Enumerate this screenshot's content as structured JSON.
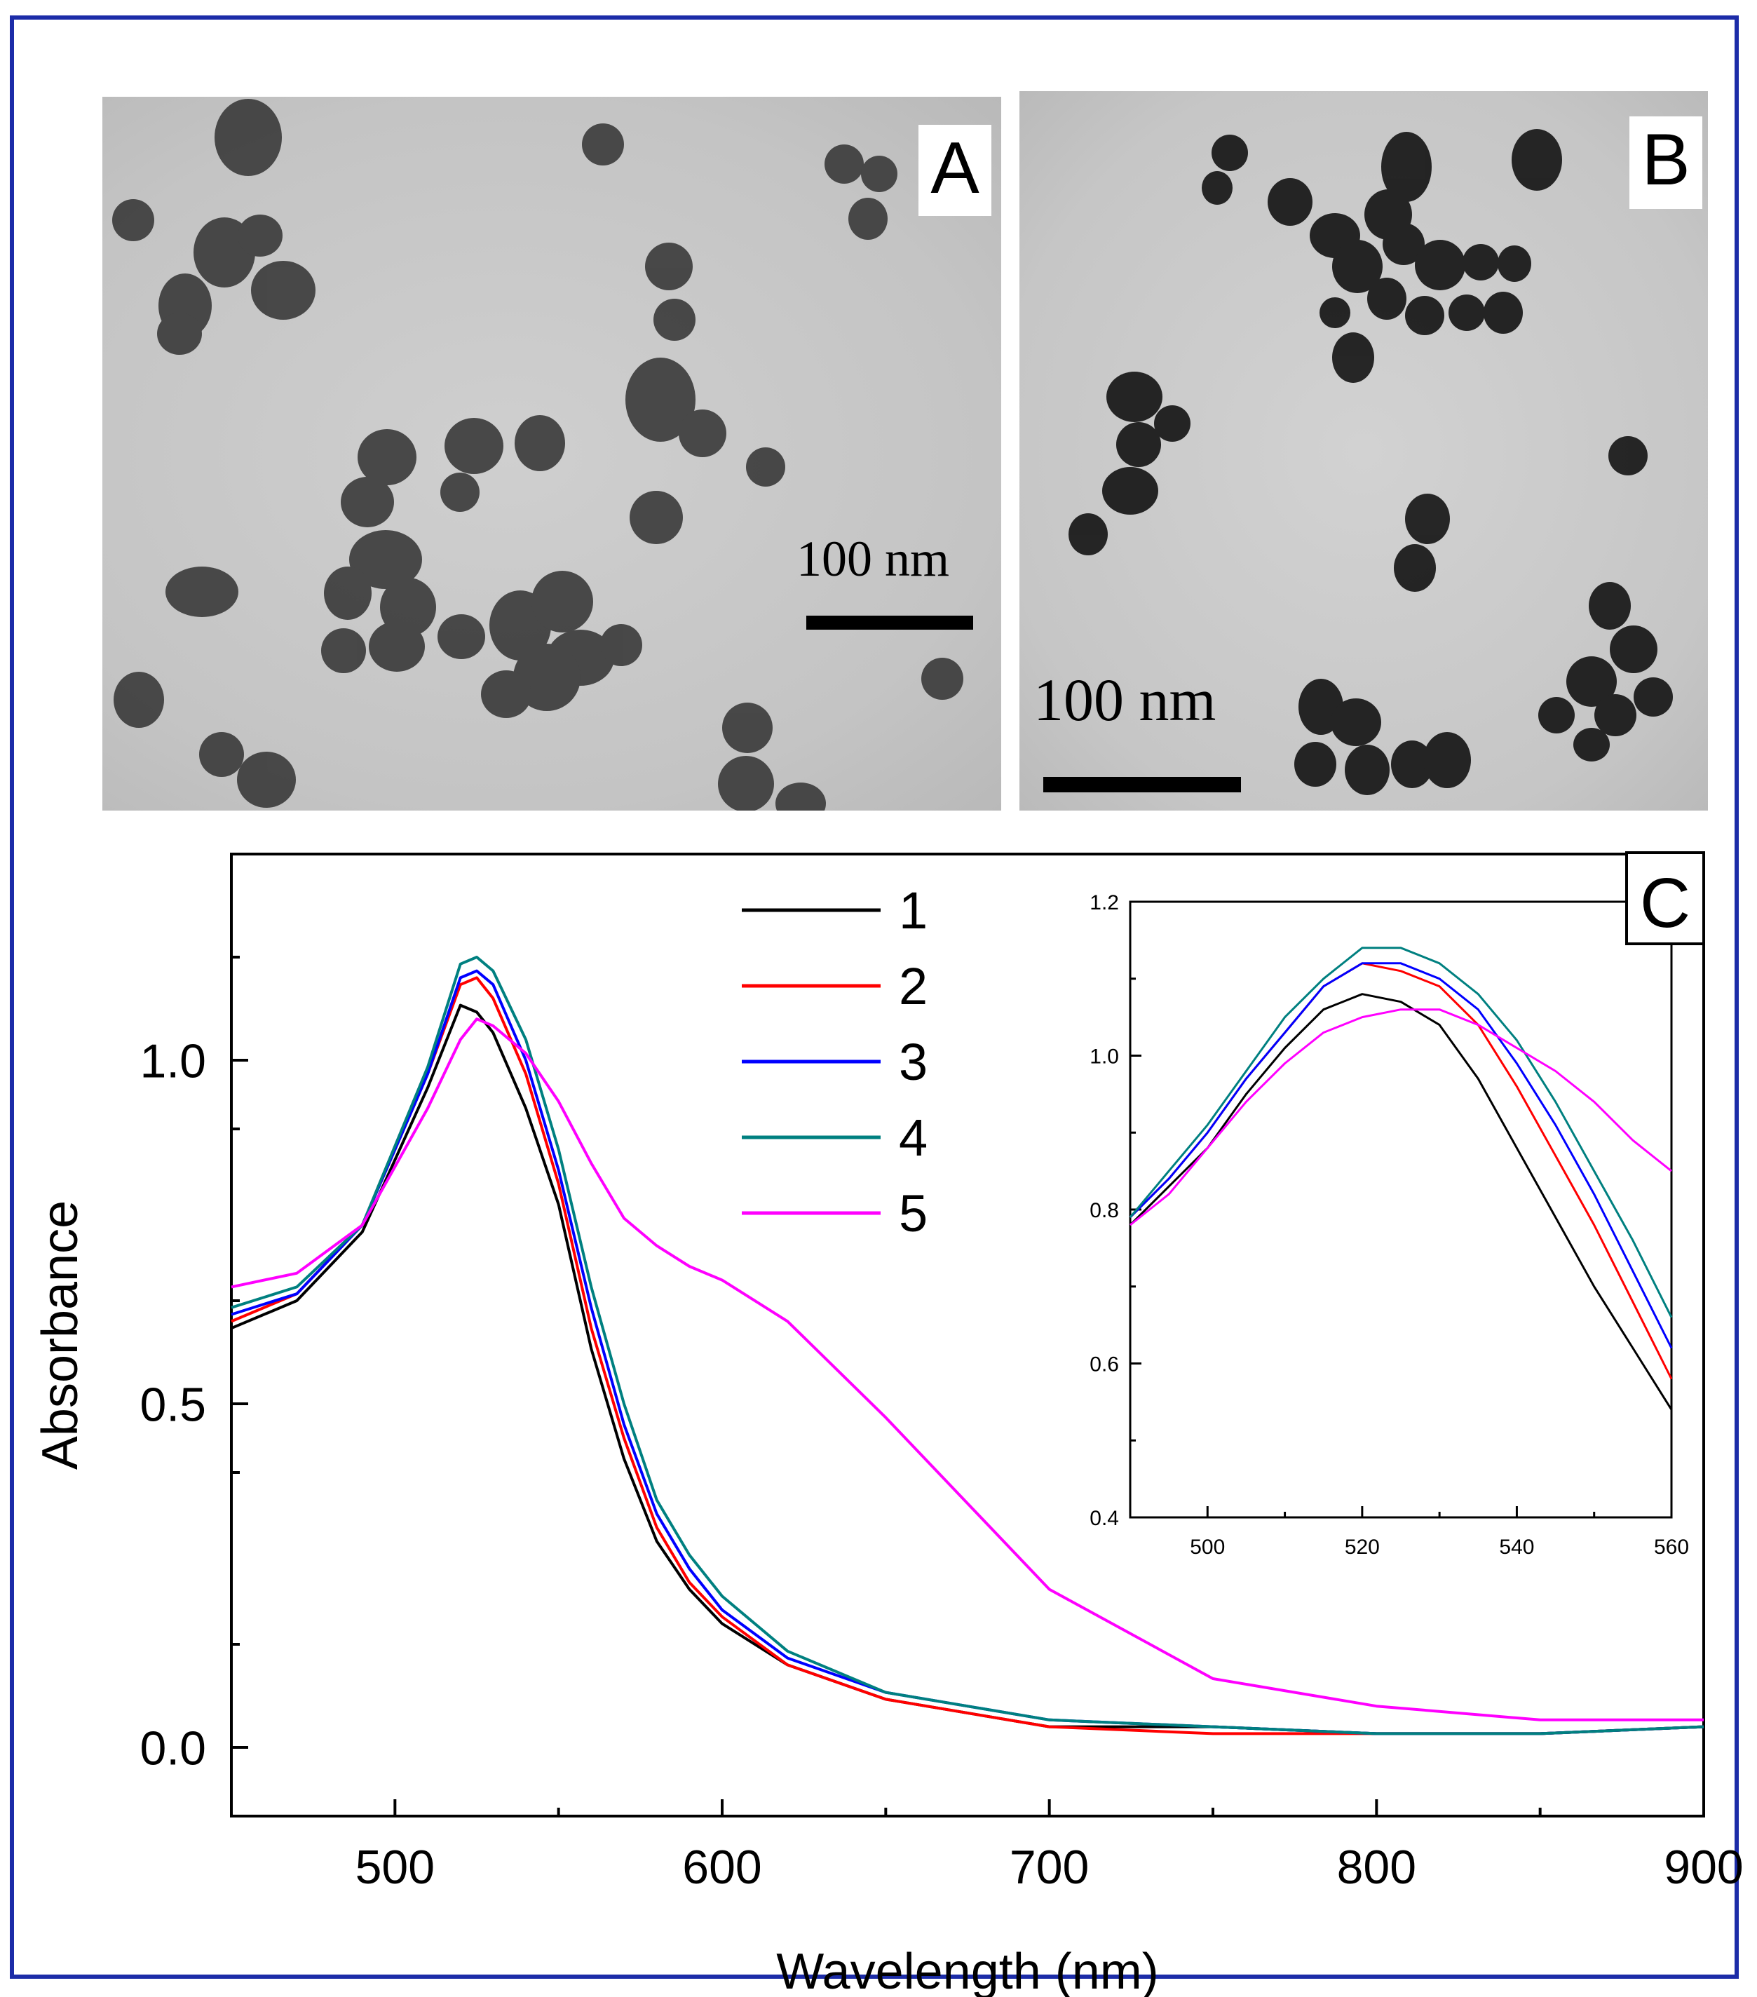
{
  "figure": {
    "panel_a_label": "A",
    "panel_b_label": "B",
    "panel_c_label": "C",
    "scale_a": "100 nm",
    "scale_b": "100 nm"
  },
  "chart_data": [
    {
      "type": "line",
      "name": "main",
      "title": "",
      "xlabel": "Wavelength (nm)",
      "ylabel": "Absorbance",
      "xlim": [
        450,
        900
      ],
      "ylim": [
        -0.1,
        1.3
      ],
      "xticks": [
        500,
        600,
        700,
        800,
        900
      ],
      "xtick_labels": [
        "500",
        "600",
        "700",
        "800",
        "900"
      ],
      "yticks": [
        0.0,
        0.5,
        1.0
      ],
      "ytick_labels": [
        "0.0",
        "0.5",
        "1.0"
      ],
      "legend_position": "top-center",
      "x": [
        450,
        470,
        490,
        510,
        520,
        525,
        530,
        540,
        550,
        560,
        570,
        580,
        590,
        600,
        620,
        650,
        700,
        750,
        800,
        850,
        900
      ],
      "series": [
        {
          "name": "1",
          "color": "#000000",
          "values": [
            0.61,
            0.65,
            0.75,
            0.96,
            1.08,
            1.07,
            1.04,
            0.93,
            0.79,
            0.58,
            0.42,
            0.3,
            0.23,
            0.18,
            0.12,
            0.07,
            0.03,
            0.03,
            0.02,
            0.02,
            0.03
          ]
        },
        {
          "name": "2",
          "color": "#ff0000",
          "values": [
            0.62,
            0.66,
            0.76,
            0.98,
            1.11,
            1.12,
            1.09,
            0.98,
            0.82,
            0.61,
            0.45,
            0.32,
            0.24,
            0.19,
            0.12,
            0.07,
            0.03,
            0.02,
            0.02,
            0.02,
            0.03
          ]
        },
        {
          "name": "3",
          "color": "#0000ff",
          "values": [
            0.63,
            0.66,
            0.76,
            0.98,
            1.12,
            1.13,
            1.11,
            1.0,
            0.84,
            0.64,
            0.47,
            0.34,
            0.26,
            0.2,
            0.13,
            0.08,
            0.04,
            0.03,
            0.02,
            0.02,
            0.03
          ]
        },
        {
          "name": "4",
          "color": "#008080",
          "values": [
            0.64,
            0.67,
            0.76,
            0.99,
            1.14,
            1.15,
            1.13,
            1.03,
            0.87,
            0.67,
            0.5,
            0.36,
            0.28,
            0.22,
            0.14,
            0.08,
            0.04,
            0.03,
            0.02,
            0.02,
            0.03
          ]
        },
        {
          "name": "5",
          "color": "#ff00ff",
          "values": [
            0.67,
            0.69,
            0.76,
            0.93,
            1.03,
            1.06,
            1.05,
            1.01,
            0.94,
            0.85,
            0.77,
            0.73,
            0.7,
            0.68,
            0.62,
            0.48,
            0.23,
            0.1,
            0.06,
            0.04,
            0.04
          ]
        }
      ]
    },
    {
      "type": "line",
      "name": "inset",
      "title": "",
      "xlabel": "",
      "ylabel": "",
      "xlim": [
        490,
        560
      ],
      "ylim": [
        0.4,
        1.2
      ],
      "xticks": [
        500,
        520,
        540,
        560
      ],
      "xtick_labels": [
        "500",
        "520",
        "540",
        "560"
      ],
      "yticks": [
        0.4,
        0.6,
        0.8,
        1.0,
        1.2
      ],
      "ytick_labels": [
        "0.4",
        "0.6",
        "0.8",
        "1.0",
        "1.2"
      ],
      "x": [
        490,
        495,
        500,
        505,
        510,
        515,
        520,
        525,
        530,
        535,
        540,
        545,
        550,
        555,
        560
      ],
      "series": [
        {
          "name": "1",
          "color": "#000000",
          "values": [
            0.78,
            0.83,
            0.88,
            0.95,
            1.01,
            1.06,
            1.08,
            1.07,
            1.04,
            0.97,
            0.88,
            0.79,
            0.7,
            0.62,
            0.54
          ]
        },
        {
          "name": "2",
          "color": "#ff0000",
          "values": [
            0.79,
            0.84,
            0.9,
            0.97,
            1.03,
            1.09,
            1.12,
            1.11,
            1.09,
            1.04,
            0.96,
            0.87,
            0.78,
            0.68,
            0.58
          ]
        },
        {
          "name": "3",
          "color": "#0000ff",
          "values": [
            0.79,
            0.84,
            0.9,
            0.97,
            1.03,
            1.09,
            1.12,
            1.12,
            1.1,
            1.06,
            0.99,
            0.91,
            0.82,
            0.72,
            0.62
          ]
        },
        {
          "name": "4",
          "color": "#008080",
          "values": [
            0.79,
            0.85,
            0.91,
            0.98,
            1.05,
            1.1,
            1.14,
            1.14,
            1.12,
            1.08,
            1.02,
            0.94,
            0.85,
            0.76,
            0.66
          ]
        },
        {
          "name": "5",
          "color": "#ff00ff",
          "values": [
            0.78,
            0.82,
            0.88,
            0.94,
            0.99,
            1.03,
            1.05,
            1.06,
            1.06,
            1.04,
            1.01,
            0.98,
            0.94,
            0.89,
            0.85
          ]
        }
      ]
    }
  ]
}
